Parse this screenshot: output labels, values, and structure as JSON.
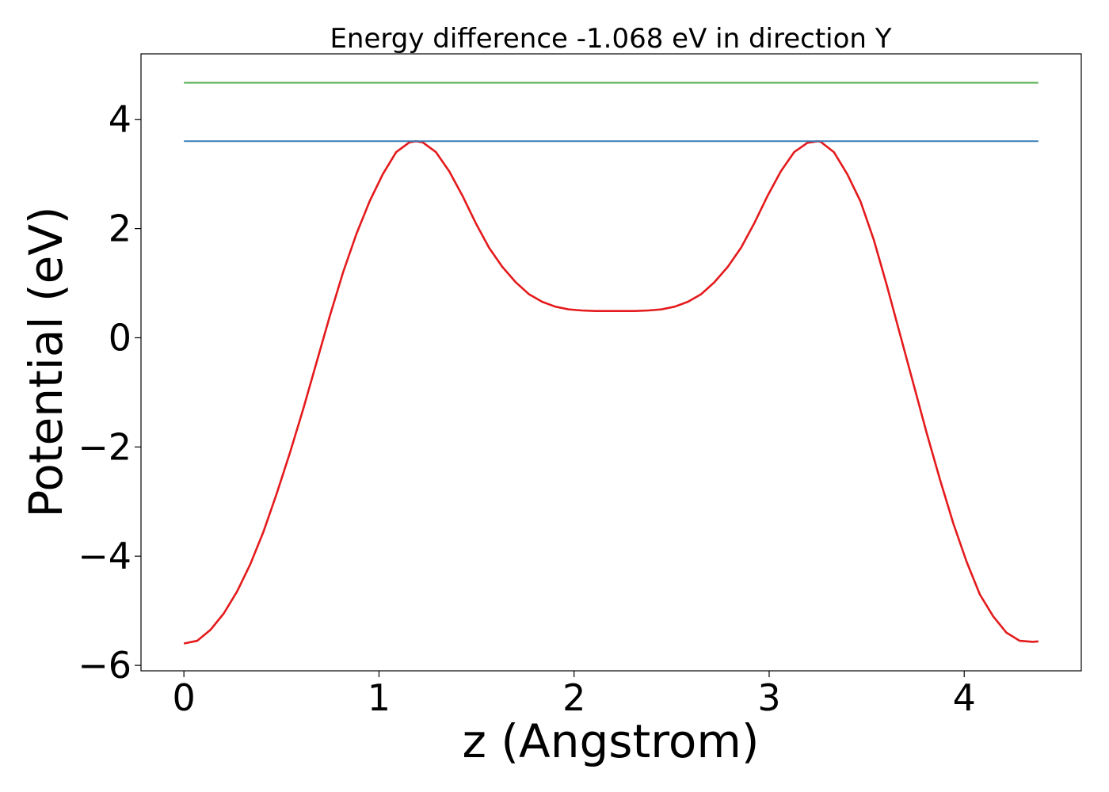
{
  "chart_data": {
    "type": "line",
    "title": "Energy difference -1.068 eV in direction Y",
    "xlabel": "z (Angstrom)",
    "ylabel": "Potential (eV)",
    "xlim": [
      -0.22,
      4.6
    ],
    "ylim": [
      -6.1,
      5.2
    ],
    "xticks": [
      0,
      1,
      2,
      3,
      4
    ],
    "yticks": [
      -6,
      -4,
      -2,
      0,
      2,
      4
    ],
    "xtick_labels": [
      "0",
      "1",
      "2",
      "3",
      "4"
    ],
    "ytick_labels": [
      "−6",
      "−4",
      "−2",
      "0",
      "2",
      "4"
    ],
    "grid": false,
    "legend": "none",
    "series": [
      {
        "color": "#e41a1c",
        "x": [
          0.0,
          0.068,
          0.136,
          0.204,
          0.272,
          0.34,
          0.408,
          0.476,
          0.544,
          0.612,
          0.68,
          0.748,
          0.816,
          0.884,
          0.952,
          1.02,
          1.088,
          1.156,
          1.19,
          1.224,
          1.292,
          1.36,
          1.428,
          1.496,
          1.564,
          1.632,
          1.7,
          1.768,
          1.836,
          1.904,
          1.972,
          2.04,
          2.108,
          2.176,
          2.244,
          2.312,
          2.38,
          2.448,
          2.516,
          2.584,
          2.652,
          2.72,
          2.788,
          2.856,
          2.924,
          2.992,
          3.06,
          3.128,
          3.196,
          3.25,
          3.264,
          3.332,
          3.4,
          3.468,
          3.536,
          3.604,
          3.672,
          3.74,
          3.808,
          3.876,
          3.944,
          4.012,
          4.08,
          4.148,
          4.216,
          4.284,
          4.352,
          4.38
        ],
        "y": [
          -5.6,
          -5.55,
          -5.35,
          -5.05,
          -4.65,
          -4.15,
          -3.55,
          -2.85,
          -2.1,
          -1.3,
          -0.45,
          0.4,
          1.2,
          1.9,
          2.5,
          3.0,
          3.4,
          3.58,
          3.6,
          3.58,
          3.4,
          3.05,
          2.6,
          2.1,
          1.65,
          1.3,
          1.02,
          0.8,
          0.66,
          0.57,
          0.52,
          0.5,
          0.49,
          0.49,
          0.49,
          0.49,
          0.5,
          0.52,
          0.57,
          0.66,
          0.8,
          1.02,
          1.3,
          1.65,
          2.1,
          2.6,
          3.05,
          3.4,
          3.57,
          3.6,
          3.59,
          3.4,
          3.0,
          2.5,
          1.8,
          0.95,
          0.05,
          -0.85,
          -1.75,
          -2.6,
          -3.4,
          -4.1,
          -4.7,
          -5.1,
          -5.4,
          -5.55,
          -5.57,
          -5.56
        ]
      },
      {
        "color": "#377eb8",
        "x": [
          0.0,
          4.38
        ],
        "y": [
          3.6,
          3.6
        ]
      },
      {
        "color": "#4daf4a",
        "x": [
          0.0,
          4.38
        ],
        "y": [
          4.67,
          4.67
        ]
      }
    ]
  }
}
